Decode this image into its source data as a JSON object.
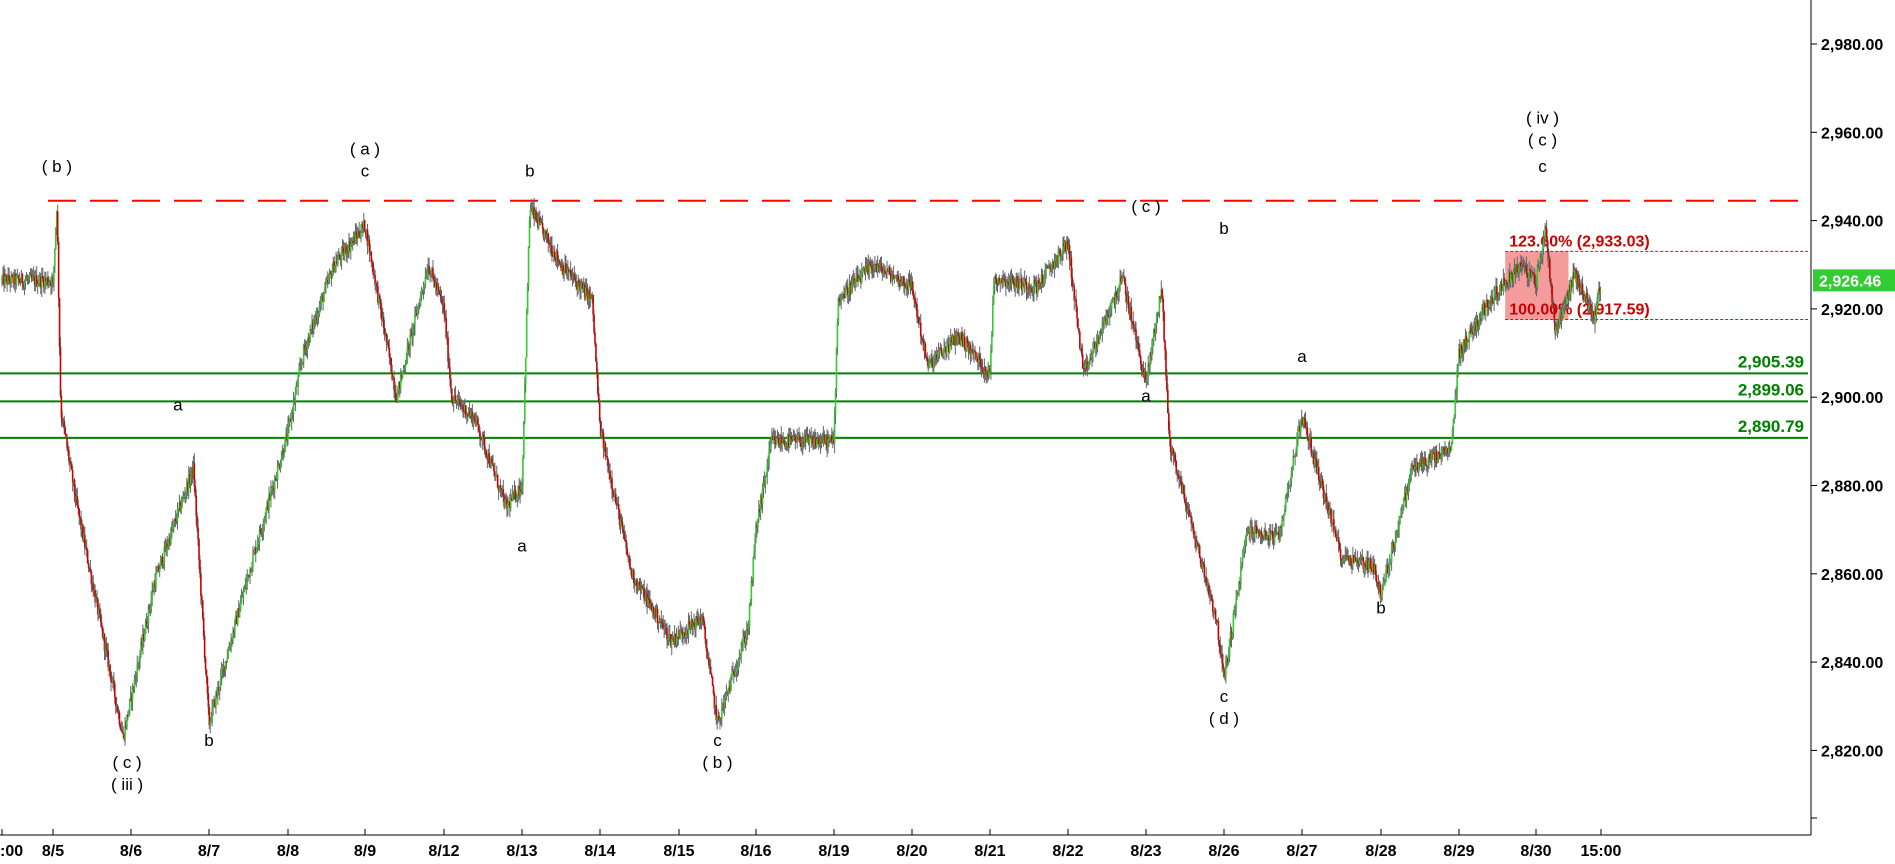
{
  "chart_data": {
    "type": "candlestick",
    "title": "",
    "x_tick_labels": [
      ":00",
      "8/5",
      "8/6",
      "8/7",
      "8/8",
      "8/9",
      "8/12",
      "8/13",
      "8/14",
      "8/15",
      "8/16",
      "8/19",
      "8/20",
      "8/21",
      "8/22",
      "8/23",
      "8/26",
      "8/27",
      "8/28",
      "8/29",
      "8/30",
      "15:00"
    ],
    "y_tick_labels": [
      "2,820.00",
      "2,840.00",
      "2,860.00",
      "2,880.00",
      "2,900.00",
      "2,920.00",
      "2,940.00",
      "2,960.00",
      "2,980.00"
    ],
    "y_ticks": [
      2820,
      2840,
      2860,
      2880,
      2900,
      2920,
      2940,
      2960,
      2980
    ],
    "ylim": [
      2796,
      2998
    ],
    "last_price": 2926.46,
    "last_price_label": "2,926.46",
    "resistance_line": {
      "value": 2944.5,
      "style": "dashed",
      "color": "#ff0000"
    },
    "support_lines": [
      {
        "value": 2905.39,
        "label": "2,905.39"
      },
      {
        "value": 2899.06,
        "label": "2,899.06"
      },
      {
        "value": 2890.79,
        "label": "2,890.79"
      }
    ],
    "fib_zone": {
      "upper_value": 2933.03,
      "lower_value": 2917.59,
      "upper_label": "123.60% (2,933.03)",
      "lower_label": "100.00% (2,917.59)",
      "start_session": 18.6,
      "end_session": 19.5
    },
    "session_anchors": [
      {
        "session": 0,
        "price": 2925
      },
      {
        "session": 0.05,
        "price": 2944
      },
      {
        "session": 0.1,
        "price": 2897
      },
      {
        "session": 0.3,
        "price": 2876
      },
      {
        "session": 0.9,
        "price": 2823
      },
      {
        "session": 1.3,
        "price": 2858
      },
      {
        "session": 1.8,
        "price": 2884
      },
      {
        "session": 2.0,
        "price": 2826
      },
      {
        "session": 2.5,
        "price": 2860
      },
      {
        "session": 3.0,
        "price": 2892
      },
      {
        "session": 3.2,
        "price": 2910
      },
      {
        "session": 3.6,
        "price": 2930
      },
      {
        "session": 4.0,
        "price": 2939
      },
      {
        "session": 4.4,
        "price": 2900
      },
      {
        "session": 4.8,
        "price": 2930
      },
      {
        "session": 5.0,
        "price": 2920
      },
      {
        "session": 5.1,
        "price": 2900
      },
      {
        "session": 5.4,
        "price": 2895
      },
      {
        "session": 5.8,
        "price": 2875
      },
      {
        "session": 6.0,
        "price": 2880
      },
      {
        "session": 6.1,
        "price": 2943
      },
      {
        "session": 6.5,
        "price": 2930
      },
      {
        "session": 6.9,
        "price": 2922
      },
      {
        "session": 7.0,
        "price": 2893
      },
      {
        "session": 7.4,
        "price": 2860
      },
      {
        "session": 7.9,
        "price": 2845
      },
      {
        "session": 8.3,
        "price": 2850
      },
      {
        "session": 8.5,
        "price": 2826
      },
      {
        "session": 8.9,
        "price": 2848
      },
      {
        "session": 9.0,
        "price": 2870
      },
      {
        "session": 9.2,
        "price": 2890
      },
      {
        "session": 10.0,
        "price": 2890
      },
      {
        "session": 10.05,
        "price": 2922
      },
      {
        "session": 10.5,
        "price": 2930
      },
      {
        "session": 11.0,
        "price": 2925
      },
      {
        "session": 11.2,
        "price": 2907
      },
      {
        "session": 11.6,
        "price": 2914
      },
      {
        "session": 12.0,
        "price": 2905
      },
      {
        "session": 12.05,
        "price": 2927
      },
      {
        "session": 12.6,
        "price": 2925
      },
      {
        "session": 13.0,
        "price": 2935
      },
      {
        "session": 13.2,
        "price": 2905
      },
      {
        "session": 13.7,
        "price": 2927
      },
      {
        "session": 14.0,
        "price": 2903
      },
      {
        "session": 14.2,
        "price": 2925
      },
      {
        "session": 14.3,
        "price": 2890
      },
      {
        "session": 14.6,
        "price": 2870
      },
      {
        "session": 14.9,
        "price": 2850
      },
      {
        "session": 15.0,
        "price": 2836
      },
      {
        "session": 15.3,
        "price": 2870
      },
      {
        "session": 15.7,
        "price": 2868
      },
      {
        "session": 16.0,
        "price": 2896
      },
      {
        "session": 16.5,
        "price": 2864
      },
      {
        "session": 16.9,
        "price": 2862
      },
      {
        "session": 17.0,
        "price": 2855
      },
      {
        "session": 17.4,
        "price": 2884
      },
      {
        "session": 17.9,
        "price": 2888
      },
      {
        "session": 18.0,
        "price": 2910
      },
      {
        "session": 18.4,
        "price": 2922
      },
      {
        "session": 18.8,
        "price": 2930
      },
      {
        "session": 19.0,
        "price": 2926
      },
      {
        "session": 19.15,
        "price": 2938
      },
      {
        "session": 19.3,
        "price": 2915
      },
      {
        "session": 19.6,
        "price": 2928
      },
      {
        "session": 19.9,
        "price": 2918
      },
      {
        "session": 20.0,
        "price": 2926.46
      }
    ],
    "wave_labels": [
      {
        "text": "( b )",
        "session": 0.05,
        "price": 2951
      },
      {
        "text": "( c )",
        "session": 0.95,
        "price": 2816
      },
      {
        "text": "( iii )",
        "session": 0.95,
        "price": 2811
      },
      {
        "text": "a",
        "session": 1.6,
        "price": 2897
      },
      {
        "text": "b",
        "session": 2.0,
        "price": 2821
      },
      {
        "text": "( a )",
        "session": 4.0,
        "price": 2955
      },
      {
        "text": "c",
        "session": 4.0,
        "price": 2950
      },
      {
        "text": "a",
        "session": 6.0,
        "price": 2865
      },
      {
        "text": "b",
        "session": 6.1,
        "price": 2950
      },
      {
        "text": "c",
        "session": 8.5,
        "price": 2821
      },
      {
        "text": "( b )",
        "session": 8.5,
        "price": 2816
      },
      {
        "text": "( c )",
        "session": 14.0,
        "price": 2942
      },
      {
        "text": "a",
        "session": 14.0,
        "price": 2899
      },
      {
        "text": "b",
        "session": 15.0,
        "price": 2937
      },
      {
        "text": "c",
        "session": 15.0,
        "price": 2831
      },
      {
        "text": "( d )",
        "session": 15.0,
        "price": 2826
      },
      {
        "text": "a",
        "session": 16.0,
        "price": 2908
      },
      {
        "text": "b",
        "session": 17.0,
        "price": 2851
      },
      {
        "text": "( iv )",
        "session": 19.1,
        "price": 2962
      },
      {
        "text": "( c )",
        "session": 19.1,
        "price": 2957
      },
      {
        "text": "c",
        "session": 19.1,
        "price": 2951
      }
    ],
    "colors": {
      "up": "#33cc33",
      "down": "#cc0000",
      "wick": "#666666",
      "support": "#008000",
      "resistance": "#ff0000",
      "fib_text": "#cc0000",
      "fib_zone_fill": "#f28b8b",
      "last_price_bg": "#33cc33"
    },
    "grid": false,
    "axis_position": "right"
  }
}
